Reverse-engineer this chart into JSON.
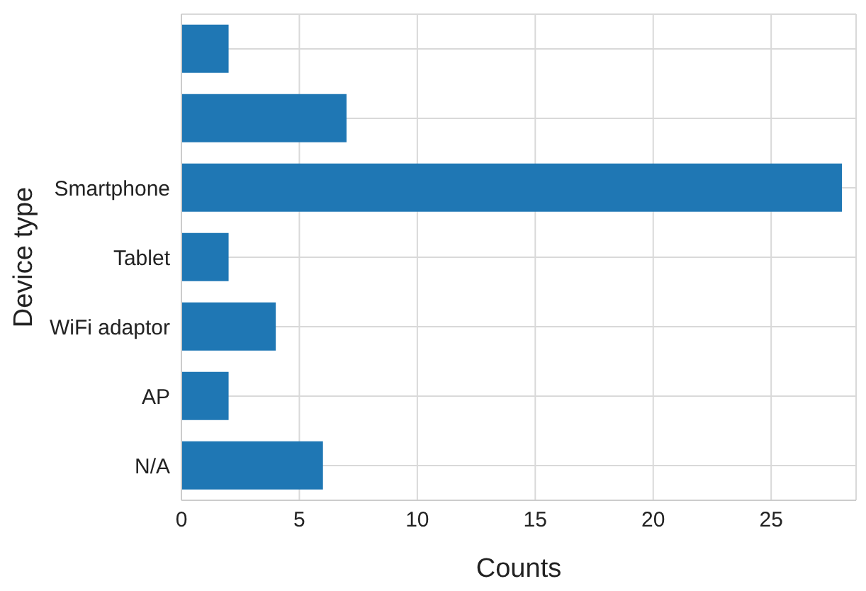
{
  "chart_data": {
    "type": "bar",
    "orientation": "horizontal",
    "xlabel": "Counts",
    "ylabel": "Device type",
    "categories": [
      null,
      null,
      "Smartphone",
      "Tablet",
      "WiFi adaptor",
      "AP",
      "N/A"
    ],
    "values": [
      2,
      7,
      28,
      2,
      4,
      2,
      6
    ],
    "color": "#1f77b4",
    "xlim": [
      0,
      28.6
    ],
    "xticks": [
      0,
      5,
      10,
      15,
      20,
      25
    ],
    "grid": true
  }
}
